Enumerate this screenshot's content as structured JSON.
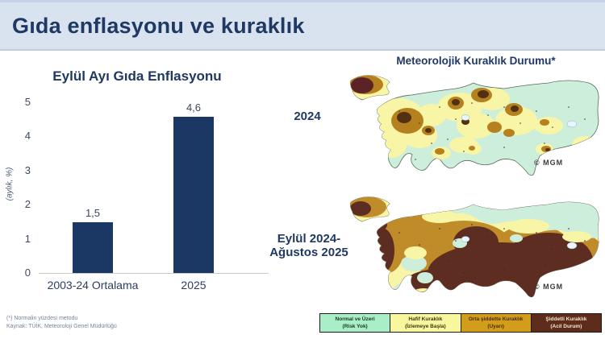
{
  "slide": {
    "title": "Gıda enflasyonu ve kuraklık",
    "footnote": "(*) Normalin yüzdesi metodu",
    "source": "Kaynak: TÜİK, Meteoroloji Genel Müdürlüğü"
  },
  "chart_data": {
    "type": "bar",
    "title": "Eylül Ayı Gıda Enflasyonu",
    "xlabel": "",
    "ylabel": "(aylık, %)",
    "categories": [
      "2003-24 Ortalama",
      "2025"
    ],
    "values": [
      1.5,
      4.6
    ],
    "value_labels": [
      "1,5",
      "4,6"
    ],
    "ylim": [
      0,
      5
    ],
    "ytick_labels": [
      "5",
      "4",
      "3",
      "2",
      "1",
      "0"
    ],
    "grid": false,
    "legend_position": "none",
    "bar_color": "#1b3764"
  },
  "drought_maps": {
    "title": "Meteorolojik Kuraklık Durumu*",
    "map1_label": "2024",
    "map2_label_line1": "Eylül 2024-",
    "map2_label_line2": "Ağustos 2025",
    "watermark": "© MGM"
  },
  "legend": {
    "items": [
      {
        "line1": "Normal ve Üzeri",
        "line2": "(Risk Yok)",
        "bg": "#a9eec9",
        "fg": "#163a22"
      },
      {
        "line1": "Hafif Kuraklık",
        "line2": "(İzlemeye Başla)",
        "bg": "#f8f7a0",
        "fg": "#3c3a0e"
      },
      {
        "line1": "Orta şiddette Kuraklık",
        "line2": "(Uyarı)",
        "bg": "#d29d1b",
        "fg": "#4d2a05"
      },
      {
        "line1": "Şiddetli Kuraklık",
        "line2": "(Acil Durum)",
        "bg": "#5e2c1b",
        "fg": "#f4e8d2"
      }
    ]
  },
  "palette": {
    "header_bg": "#d9e3f0",
    "navy": "#1f3864",
    "bar": "#1b3764",
    "tick_text": "#3d4a61",
    "footer_text": "#76849e",
    "map_green": "#cdeeda",
    "map_yellow": "#f8f5a6",
    "map_ochre": "#b5811f",
    "map_brown": "#533012",
    "map_maroon": "#5c2327",
    "map2_ochre": "#c08c2a",
    "map2_brown": "#5e2d22"
  }
}
